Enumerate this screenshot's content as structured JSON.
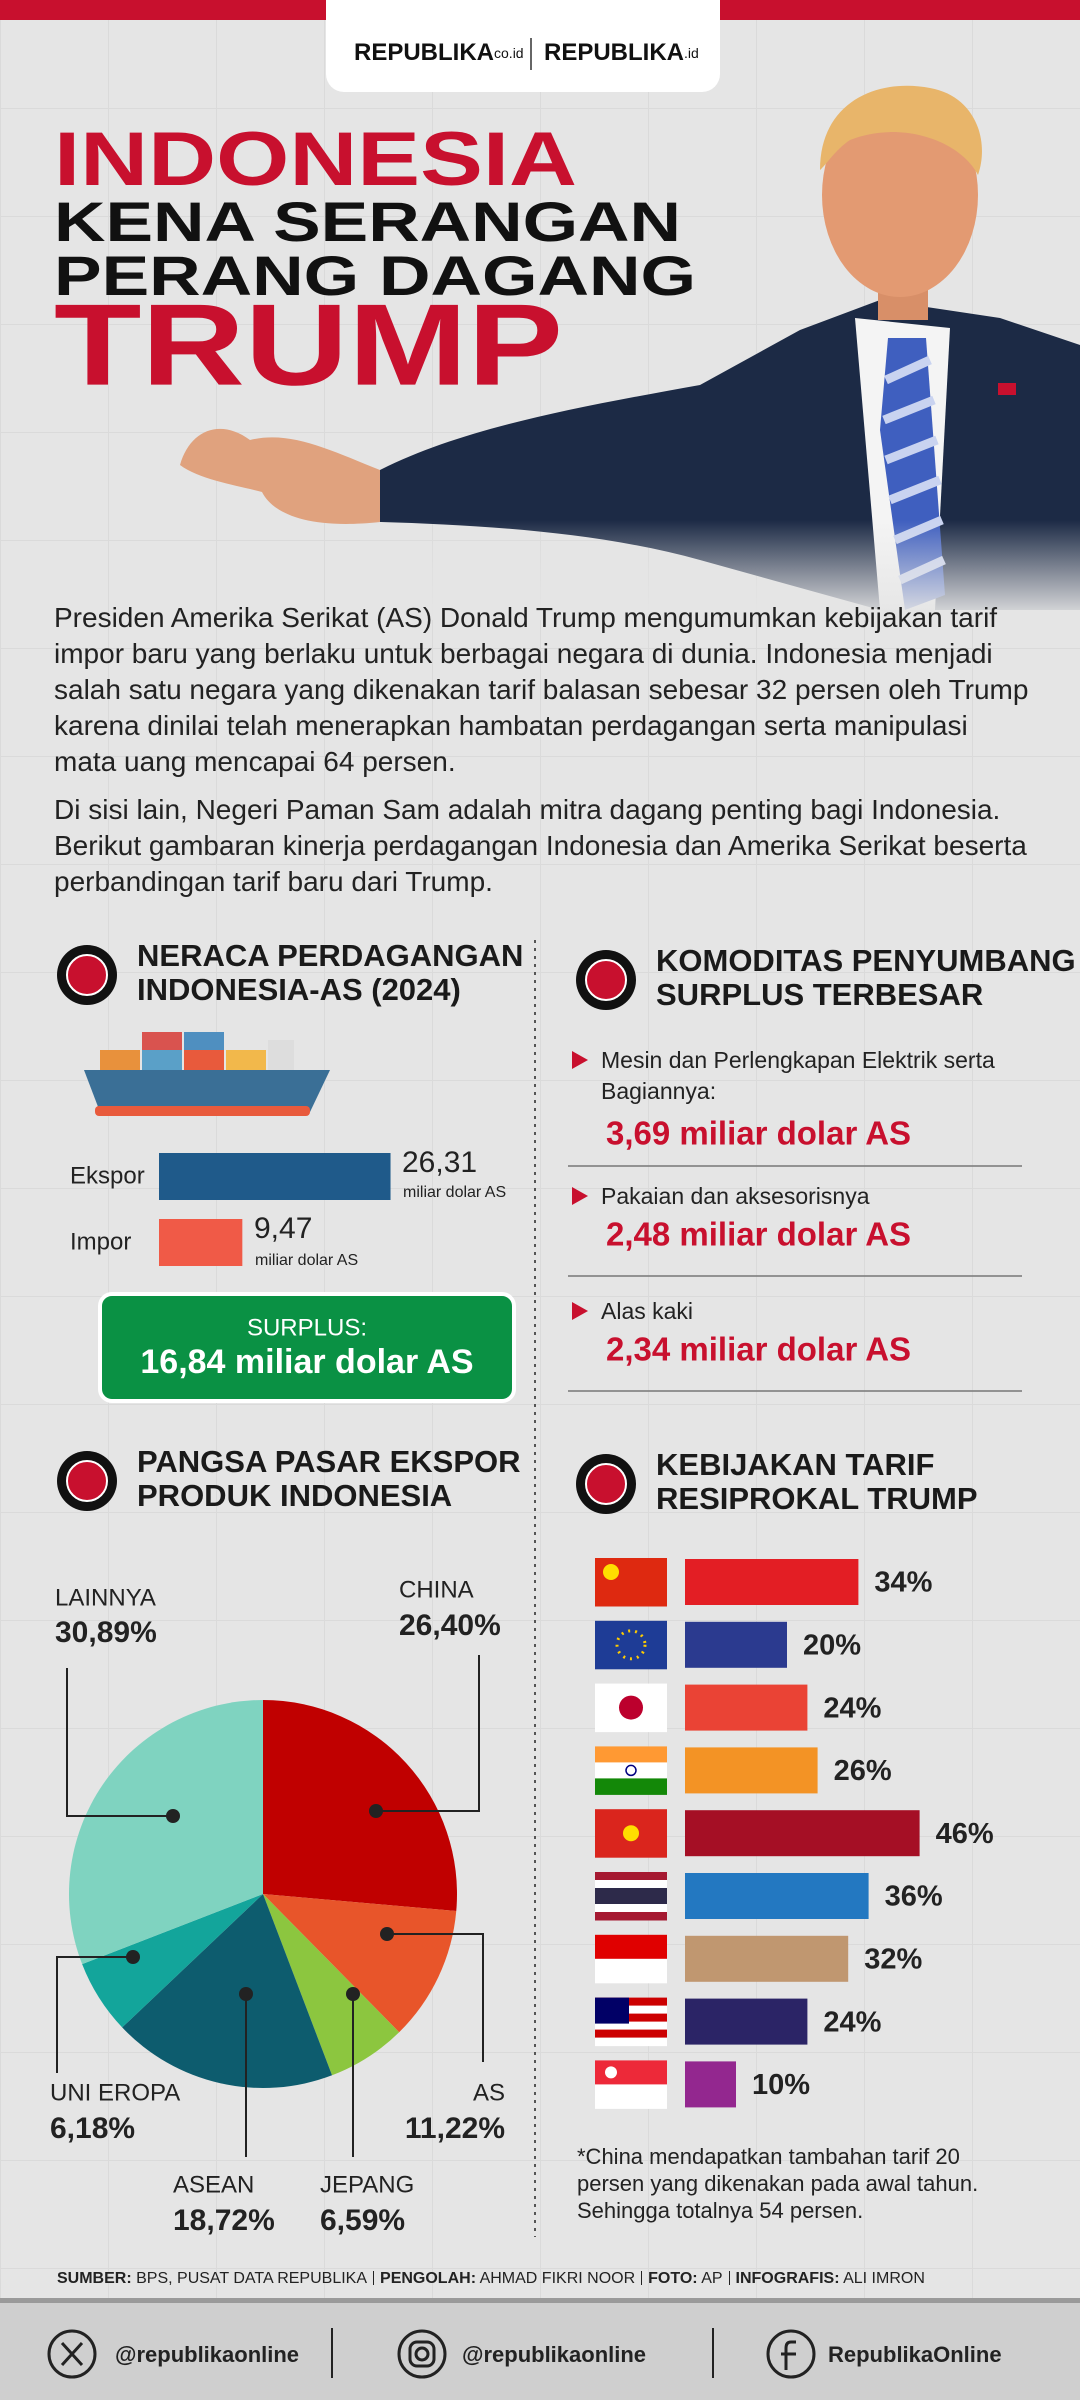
{
  "header": {
    "logo_left": {
      "name": "REPUBLIKA",
      "suffix": "co.id"
    },
    "logo_right": {
      "name": "REPUBLIKA",
      "suffix": ".id"
    }
  },
  "title": [
    "INDONESIA",
    "KENA SERANGAN",
    "PERANG DAGANG",
    "TRUMP"
  ],
  "intro": [
    "Presiden Amerika Serikat (AS) Donald Trump mengumumkan kebijakan tarif impor baru yang berlaku untuk berbagai negara di dunia. Indonesia menjadi salah satu negara yang dikenakan tarif balasan sebesar 32 persen oleh Trump karena dinilai telah menerapkan hambatan perdagangan serta manipulasi mata uang mencapai 64 persen.",
    "Di sisi lain, Negeri Paman Sam adalah mitra dagang penting bagi Indonesia. Berikut gambaran kinerja perdagangan Indonesia dan Amerika Serikat beserta perbandingan tarif baru dari Trump."
  ],
  "chart_data": [
    {
      "type": "bar",
      "title": [
        "NERACA PERDAGANGAN",
        "INDONESIA-AS (2024)"
      ],
      "categories": [
        "Ekspor",
        "Impor"
      ],
      "values": [
        26.31,
        9.47
      ],
      "value_labels": [
        "26,31",
        "9,47"
      ],
      "unit": "miliar dolar AS",
      "colors": [
        "#1f5a8a",
        "#f05a47"
      ],
      "surplus": {
        "label": "SURPLUS:",
        "text": "16,84 miliar dolar AS"
      }
    },
    {
      "type": "pie",
      "title": [
        "PANGSA PASAR EKSPOR",
        "PRODUK INDONESIA"
      ],
      "categories": [
        "CHINA",
        "AS",
        "JEPANG",
        "ASEAN",
        "UNI EROPA",
        "LAINNYA"
      ],
      "values": [
        26.4,
        11.22,
        6.59,
        18.72,
        6.18,
        30.89
      ],
      "value_labels": [
        "26,40%",
        "11,22%",
        "6,59%",
        "18,72%",
        "6,18%",
        "30,89%"
      ],
      "colors": [
        "#c00000",
        "#e8552a",
        "#8cc63f",
        "#0d5c6e",
        "#13a59b",
        "#7fd3c0"
      ]
    },
    {
      "type": "bar",
      "title": [
        "KEBIJAKAN TARIF",
        "RESIPROKAL TRUMP"
      ],
      "categories": [
        null,
        null,
        null,
        null,
        null,
        null,
        null,
        null,
        null
      ],
      "values": [
        34,
        20,
        24,
        26,
        46,
        36,
        32,
        24,
        10
      ],
      "value_labels": [
        "34%",
        "20%",
        "24%",
        "26%",
        "46%",
        "36%",
        "32%",
        "24%",
        "10%"
      ],
      "colors": [
        "#e31e24",
        "#2b3a8f",
        "#ea4335",
        "#f39325",
        "#a50f25",
        "#2378c1",
        "#c09770",
        "#2b2466",
        "#93278f"
      ],
      "note": "*China mendapatkan tambahan tarif 20 persen yang dikenakan pada awal tahun. Sehingga totalnya 54 persen."
    }
  ],
  "commodities": {
    "title": [
      "KOMODITAS PENYUMBANG",
      "SURPLUS TERBESAR"
    ],
    "items": [
      {
        "name": "Mesin dan Perlengkapan Elektrik serta Bagiannya:",
        "value": "3,69 miliar dolar AS"
      },
      {
        "name": "Pakaian dan aksesorisnya",
        "value": "2,48 miliar dolar AS"
      },
      {
        "name": "Alas kaki",
        "value": "2,34 miliar dolar AS"
      }
    ]
  },
  "source": [
    {
      "label": "SUMBER:",
      "text": "BPS, PUSAT DATA REPUBLIKA"
    },
    {
      "label": "PENGOLAH:",
      "text": "AHMAD FIKRI NOOR"
    },
    {
      "label": "FOTO:",
      "text": "AP"
    },
    {
      "label": "INFOGRAFIS:",
      "text": "ALI IMRON"
    }
  ],
  "footer": [
    "@republikaonline",
    "@republikaonline",
    "RepublikaOnline"
  ]
}
